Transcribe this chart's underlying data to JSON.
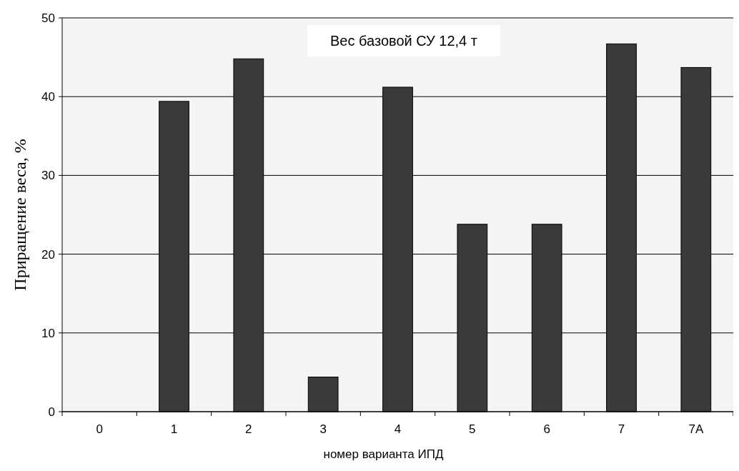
{
  "chart_data": {
    "type": "bar",
    "xlabel": "номер варианта ИПД",
    "ylabel": "Приращение веса, %",
    "categories": [
      "0",
      "1",
      "2",
      "3",
      "4",
      "5",
      "6",
      "7",
      "7А"
    ],
    "values": [
      0,
      39.4,
      44.8,
      4.4,
      41.2,
      23.8,
      23.8,
      46.7,
      43.7
    ],
    "color": "#3a3a3a",
    "ylim": [
      0,
      50
    ],
    "yticks": [
      0,
      10,
      20,
      30,
      40,
      50
    ],
    "grid": "y",
    "annotations": [
      "Вес базовой СУ 12,4 т"
    ]
  }
}
